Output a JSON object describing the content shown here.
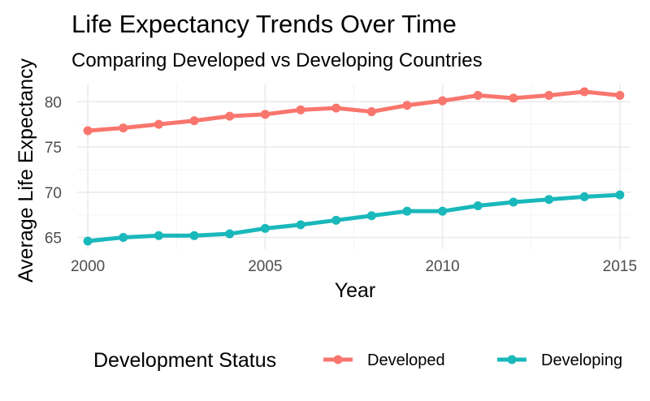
{
  "chart_data": {
    "type": "line",
    "title": "Life Expectancy Trends Over Time",
    "subtitle": "Comparing Developed vs Developing Countries",
    "xlabel": "Year",
    "ylabel": "Average Life Expectancy",
    "x": [
      2000,
      2001,
      2002,
      2003,
      2004,
      2005,
      2006,
      2007,
      2008,
      2009,
      2010,
      2011,
      2012,
      2013,
      2014,
      2015
    ],
    "xlim": [
      1999.7,
      2015.3
    ],
    "ylim": [
      63.7,
      82.0
    ],
    "xticks": [
      "2000",
      "2005",
      "2010",
      "2015"
    ],
    "yticks": [
      "65",
      "70",
      "75",
      "80"
    ],
    "grid": true,
    "legend": {
      "title": "Development Status",
      "position": "bottom"
    },
    "series": [
      {
        "name": "Developed",
        "color": "#f8766d",
        "values": [
          76.8,
          77.1,
          77.5,
          77.9,
          78.4,
          78.6,
          79.1,
          79.3,
          78.9,
          79.6,
          80.1,
          80.7,
          80.4,
          80.7,
          81.1,
          80.7
        ]
      },
      {
        "name": "Developing",
        "color": "#19b8bb",
        "values": [
          64.6,
          65.0,
          65.2,
          65.2,
          65.4,
          66.0,
          66.4,
          66.9,
          67.4,
          67.9,
          67.9,
          68.5,
          68.9,
          69.2,
          69.5,
          69.7
        ]
      }
    ]
  }
}
